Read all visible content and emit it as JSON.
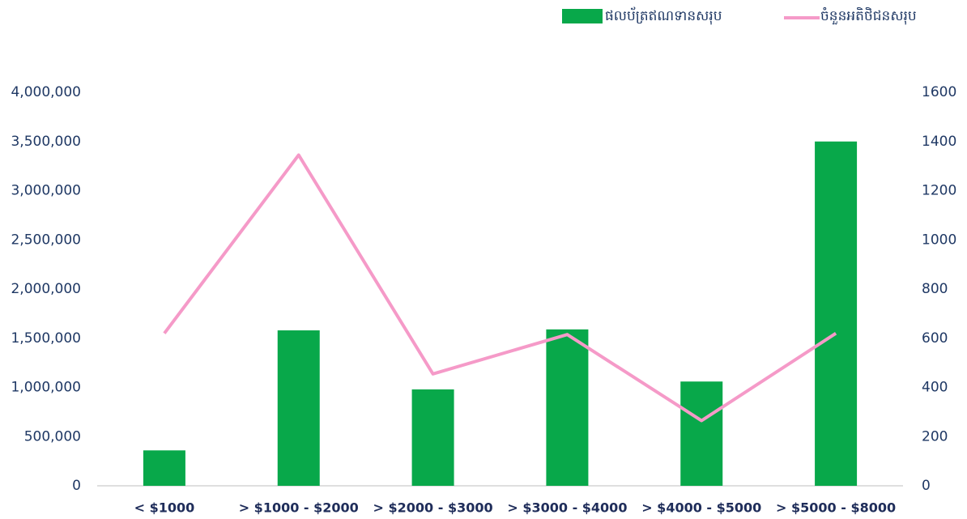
{
  "chart_data": {
    "type": "bar-line",
    "categories": [
      "< $1000",
      "> $1000 - $2000",
      "> $2000 - $3000",
      "> $3000 - $4000",
      "> $4000 - $5000",
      "> $5000 - $8000"
    ],
    "series": [
      {
        "name": "ផលប័ត្រឥណទានសរុប",
        "type": "bar",
        "color": "#08a84a",
        "values": [
          360000,
          1580000,
          980000,
          1590000,
          1060000,
          3500000
        ]
      },
      {
        "name": "ចំនួនអតិថិជនសរុប",
        "type": "line",
        "axis": "y2",
        "color": "#f59ac8",
        "values": [
          620,
          1345,
          455,
          615,
          265,
          620
        ]
      }
    ],
    "ylim": [
      0,
      4000000
    ],
    "yticks": [
      0,
      {
        "value": 500000,
        "label": "500,000"
      },
      {
        "value": 1000000,
        "label": "1,000,000"
      },
      {
        "value": 1500000,
        "label": "1,500,000"
      },
      {
        "value": 2000000,
        "label": "2,000,000"
      },
      {
        "value": 2500000,
        "label": "2,500,000"
      },
      {
        "value": 3000000,
        "label": "3,000,000"
      },
      {
        "value": 3500000,
        "label": "3,500,000"
      },
      {
        "value": 4000000,
        "label": "4,000,000"
      }
    ],
    "y2lim": [
      0,
      1600
    ],
    "y2ticks": [
      0,
      200,
      400,
      600,
      800,
      1000,
      1200,
      1400,
      1600
    ],
    "legend": "top-right"
  }
}
